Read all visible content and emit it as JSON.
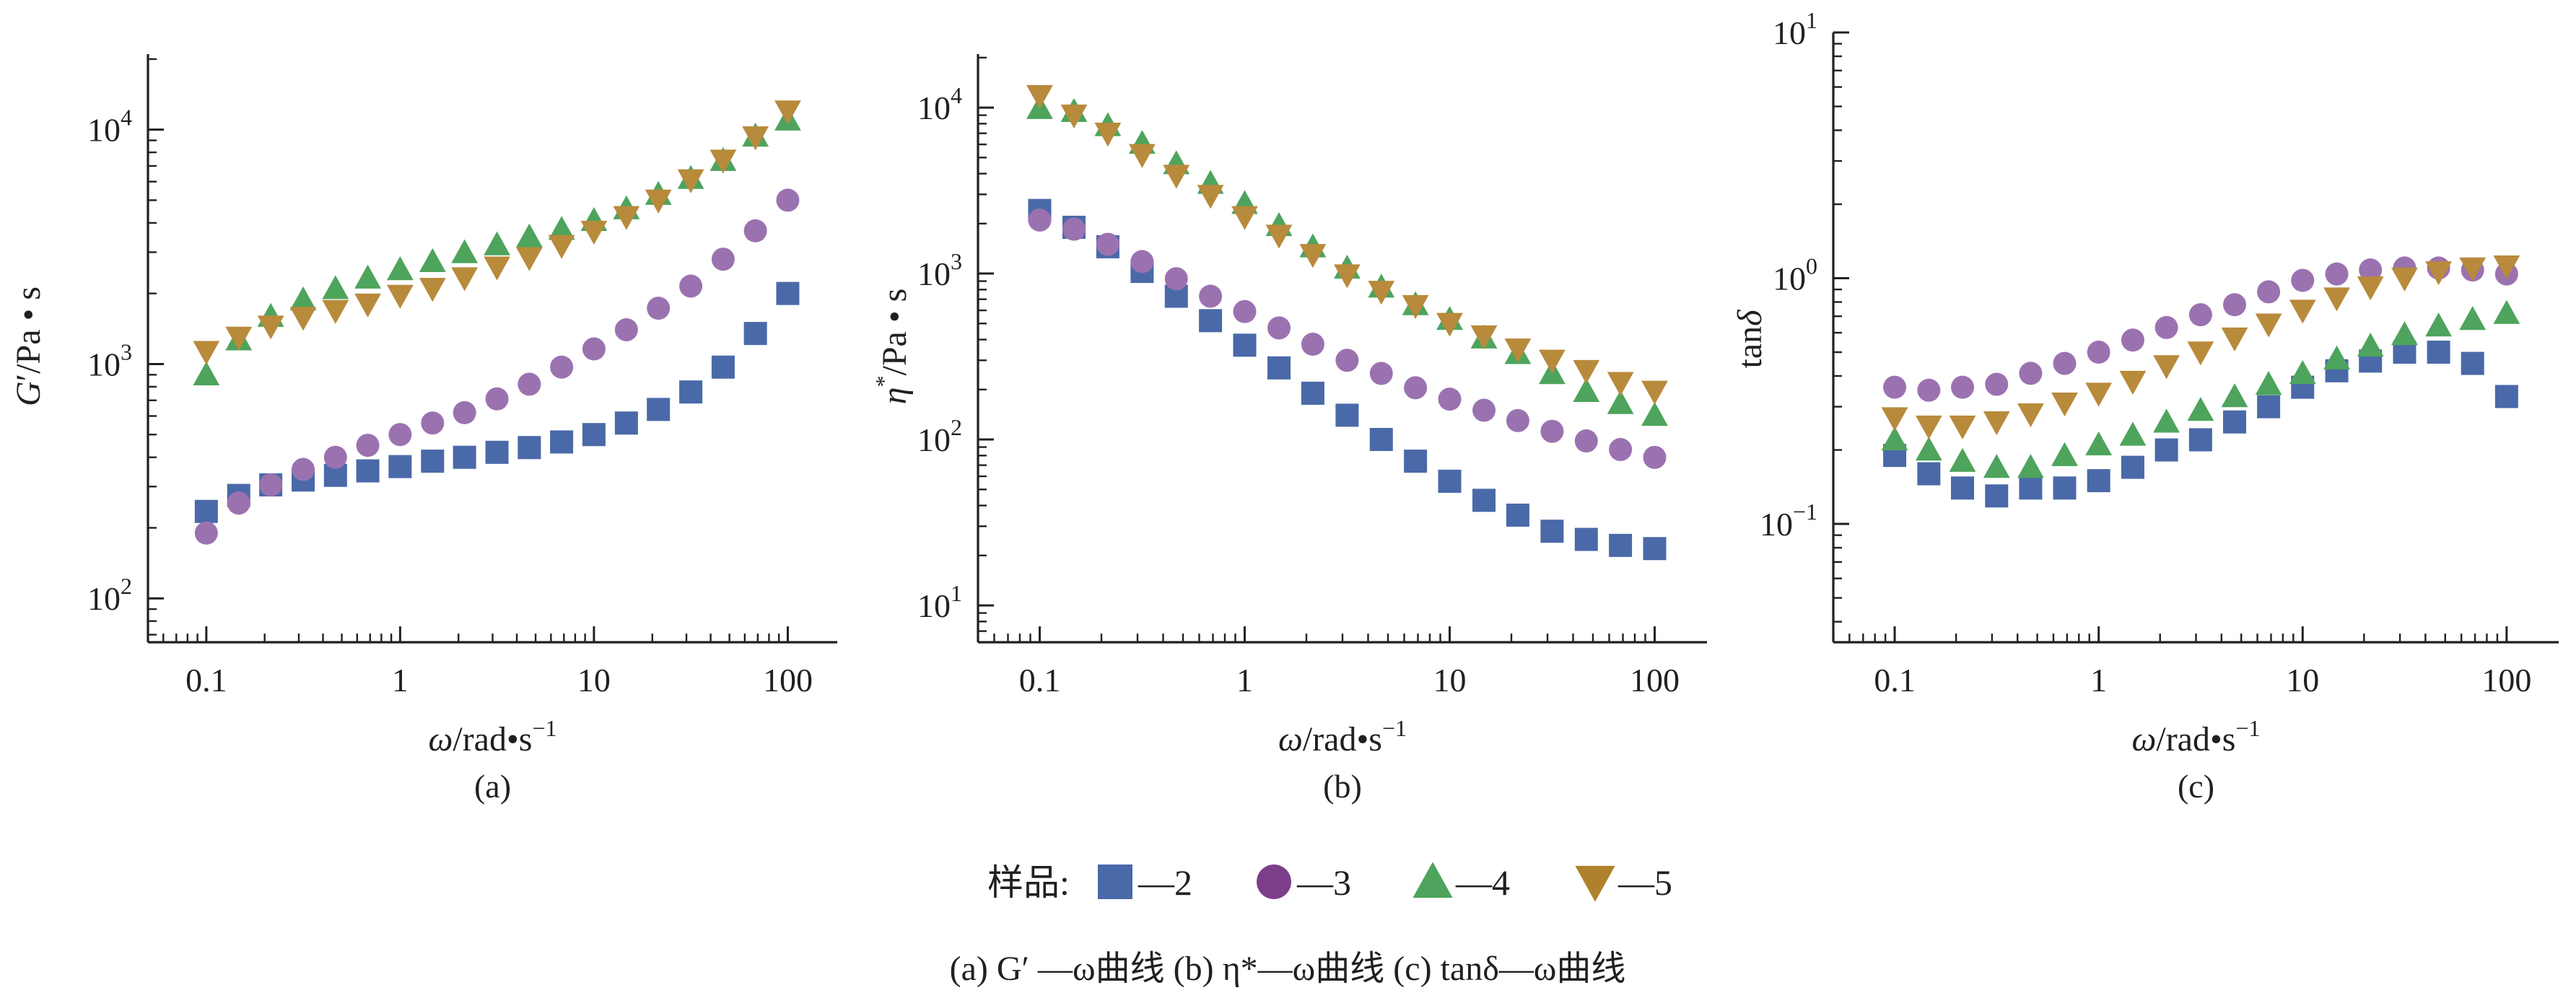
{
  "colors": {
    "2": "#4a69a8",
    "3": "#9b72b0",
    "4": "#4ea45c",
    "5": "#b88a3c",
    "legend_3": "#7d3e8c",
    "legend_5": "#b0812d"
  },
  "legend": {
    "title": "样品:",
    "entries": [
      {
        "key": "2",
        "label": "—2",
        "marker": "square"
      },
      {
        "key": "3",
        "label": "—3",
        "marker": "circle"
      },
      {
        "key": "4",
        "label": "—4",
        "marker": "triangle-up"
      },
      {
        "key": "5",
        "label": "—5",
        "marker": "triangle-down"
      }
    ]
  },
  "caption": "(a) G′ —ω曲线   (b) η*—ω曲线   (c) tanδ—ω曲线",
  "chart_data": [
    {
      "id": "a",
      "type": "scatter",
      "panel_label": "(a)",
      "xlabel": "ω/rad•s⁻¹",
      "ylabel": "G′/Pa • s",
      "xscale": "log",
      "yscale": "log",
      "xlim": [
        0.05,
        180
      ],
      "ylim": [
        65,
        21000
      ],
      "xticks": [
        0.1,
        1,
        10,
        100
      ],
      "xtick_labels": [
        "0.1",
        "1",
        "10",
        "100"
      ],
      "yticks": [
        100,
        1000,
        10000
      ],
      "ytick_labels": [
        {
          "base": "10",
          "exp": "2"
        },
        {
          "base": "10",
          "exp": "3"
        },
        {
          "base": "10",
          "exp": "4"
        }
      ],
      "grid": false,
      "x": [
        0.1,
        0.147,
        0.215,
        0.316,
        0.464,
        0.681,
        1.0,
        1.47,
        2.15,
        3.16,
        4.64,
        6.81,
        10.0,
        14.7,
        21.5,
        31.6,
        46.4,
        68.1,
        100.0
      ],
      "series": [
        {
          "name": "2",
          "marker": "square",
          "values": [
            235,
            275,
            305,
            320,
            335,
            350,
            365,
            385,
            400,
            420,
            440,
            465,
            500,
            560,
            640,
            760,
            970,
            1350,
            2000
          ]
        },
        {
          "name": "3",
          "marker": "circle",
          "values": [
            190,
            255,
            305,
            355,
            400,
            450,
            500,
            560,
            620,
            710,
            820,
            970,
            1160,
            1400,
            1730,
            2150,
            2800,
            3700,
            5000
          ]
        },
        {
          "name": "4",
          "marker": "triangle-up",
          "values": [
            900,
            1270,
            1600,
            1880,
            2100,
            2330,
            2530,
            2740,
            2990,
            3230,
            3490,
            3760,
            4100,
            4600,
            5300,
            6200,
            7400,
            9400,
            11000
          ]
        },
        {
          "name": "5",
          "marker": "triangle-down",
          "values": [
            1130,
            1300,
            1450,
            1580,
            1690,
            1800,
            1960,
            2100,
            2330,
            2590,
            2840,
            3200,
            3680,
            4250,
            5000,
            6100,
            7400,
            9300,
            12000
          ]
        }
      ]
    },
    {
      "id": "b",
      "type": "scatter",
      "panel_label": "(b)",
      "xlabel": "ω/rad•s⁻¹",
      "ylabel": "η*/Pa • s",
      "xscale": "log",
      "yscale": "log",
      "xlim": [
        0.05,
        180
      ],
      "ylim": [
        6,
        21000
      ],
      "xticks": [
        0.1,
        1,
        10,
        100
      ],
      "xtick_labels": [
        "0.1",
        "1",
        "10",
        "100"
      ],
      "yticks": [
        10,
        100,
        1000,
        10000
      ],
      "ytick_labels": [
        {
          "base": "10",
          "exp": "1"
        },
        {
          "base": "10",
          "exp": "2"
        },
        {
          "base": "10",
          "exp": "3"
        },
        {
          "base": "10",
          "exp": "4"
        }
      ],
      "grid": false,
      "x": [
        0.1,
        0.147,
        0.215,
        0.316,
        0.464,
        0.681,
        1.0,
        1.47,
        2.15,
        3.16,
        4.64,
        6.81,
        10.0,
        14.7,
        21.5,
        31.6,
        46.4,
        68.1,
        100.0
      ],
      "series": [
        {
          "name": "2",
          "marker": "square",
          "values": [
            2400,
            1900,
            1450,
            1030,
            730,
            520,
            370,
            270,
            190,
            140,
            100,
            74,
            56,
            43,
            35,
            28,
            25,
            23,
            22
          ]
        },
        {
          "name": "3",
          "marker": "circle",
          "values": [
            2100,
            1850,
            1500,
            1180,
            930,
            730,
            590,
            470,
            375,
            300,
            250,
            205,
            175,
            150,
            130,
            112,
            98,
            87,
            78
          ]
        },
        {
          "name": "4",
          "marker": "triangle-up",
          "values": [
            9900,
            9500,
            7800,
            6100,
            4600,
            3500,
            2650,
            1950,
            1450,
            1080,
            830,
            650,
            530,
            410,
            330,
            250,
            195,
            165,
            140
          ]
        },
        {
          "name": "5",
          "marker": "triangle-down",
          "values": [
            11800,
            9000,
            7000,
            5200,
            3900,
            2950,
            2200,
            1700,
            1300,
            980,
            780,
            640,
            500,
            420,
            350,
            300,
            260,
            220,
            195
          ]
        }
      ]
    },
    {
      "id": "c",
      "type": "scatter",
      "panel_label": "(c)",
      "xlabel": "ω/rad•s⁻¹",
      "ylabel": "tanδ",
      "xscale": "log",
      "yscale": "log",
      "xlim": [
        0.05,
        180
      ],
      "ylim": [
        0.033,
        10
      ],
      "xticks": [
        0.1,
        1,
        10,
        100
      ],
      "xtick_labels": [
        "0.1",
        "1",
        "10",
        "100"
      ],
      "yticks": [
        0.1,
        1,
        10
      ],
      "ytick_labels": [
        {
          "base": "10",
          "exp": "−1"
        },
        {
          "base": "10",
          "exp": "0"
        },
        {
          "base": "10",
          "exp": "1"
        }
      ],
      "grid": false,
      "x": [
        0.1,
        0.147,
        0.215,
        0.316,
        0.464,
        0.681,
        1.0,
        1.47,
        2.15,
        3.16,
        4.64,
        6.81,
        10.0,
        14.7,
        21.5,
        31.6,
        46.4,
        68.1,
        100.0
      ],
      "series": [
        {
          "name": "2",
          "marker": "square",
          "values": [
            0.19,
            0.16,
            0.14,
            0.13,
            0.14,
            0.14,
            0.15,
            0.17,
            0.2,
            0.22,
            0.26,
            0.3,
            0.36,
            0.42,
            0.46,
            0.5,
            0.5,
            0.45,
            0.33
          ]
        },
        {
          "name": "3",
          "marker": "circle",
          "values": [
            0.36,
            0.35,
            0.36,
            0.37,
            0.41,
            0.45,
            0.5,
            0.56,
            0.63,
            0.71,
            0.78,
            0.88,
            0.98,
            1.04,
            1.08,
            1.1,
            1.1,
            1.08,
            1.04
          ]
        },
        {
          "name": "4",
          "marker": "triangle-up",
          "values": [
            0.22,
            0.2,
            0.18,
            0.17,
            0.17,
            0.19,
            0.21,
            0.23,
            0.26,
            0.29,
            0.33,
            0.37,
            0.41,
            0.47,
            0.53,
            0.59,
            0.64,
            0.68,
            0.72
          ]
        },
        {
          "name": "5",
          "marker": "triangle-down",
          "values": [
            0.27,
            0.25,
            0.25,
            0.26,
            0.28,
            0.31,
            0.34,
            0.38,
            0.44,
            0.5,
            0.57,
            0.65,
            0.74,
            0.83,
            0.92,
            1.0,
            1.06,
            1.1,
            1.12
          ]
        }
      ]
    }
  ]
}
